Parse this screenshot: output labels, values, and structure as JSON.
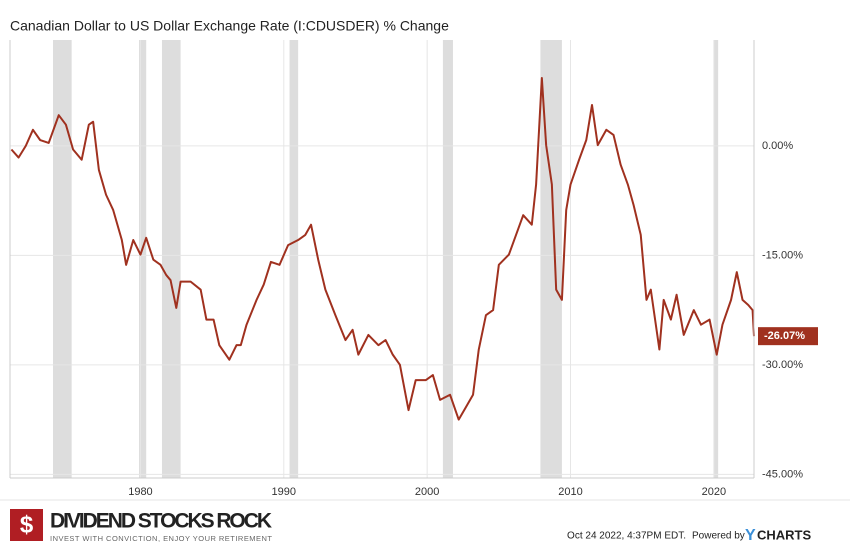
{
  "chart_data": {
    "type": "line",
    "title": "Canadian Dollar to US Dollar Exchange Rate (I:CDUSDER) % Change",
    "x": [
      1971.0,
      1971.5,
      1972.0,
      1972.5,
      1973.0,
      1973.6,
      1974.3,
      1974.8,
      1975.3,
      1975.9,
      1976.4,
      1976.7,
      1977.1,
      1977.6,
      1978.1,
      1978.7,
      1979.0,
      1979.5,
      1980.0,
      1980.4,
      1980.9,
      1981.4,
      1981.8,
      1982.1,
      1982.5,
      1982.8,
      1983.5,
      1984.2,
      1984.6,
      1985.1,
      1985.5,
      1986.2,
      1986.7,
      1987.0,
      1987.4,
      1988.1,
      1988.6,
      1989.1,
      1989.7,
      1990.3,
      1991.0,
      1991.5,
      1991.9,
      1992.4,
      1992.9,
      1993.6,
      1994.3,
      1994.8,
      1995.2,
      1995.9,
      1996.6,
      1997.1,
      1997.6,
      1998.1,
      1998.7,
      1999.2,
      1999.9,
      2000.4,
      2000.9,
      2001.6,
      2002.2,
      2002.7,
      2003.2,
      2003.6,
      2004.1,
      2004.6,
      2005.0,
      2005.7,
      2006.2,
      2006.7,
      2007.3,
      2007.6,
      2008.0,
      2008.3,
      2008.7,
      2009.0,
      2009.4,
      2009.7,
      2010.0,
      2010.6,
      2011.1,
      2011.5,
      2011.9,
      2012.5,
      2013.0,
      2013.5,
      2014.0,
      2014.4,
      2014.9,
      2015.3,
      2015.6,
      2016.2,
      2016.5,
      2017.0,
      2017.4,
      2017.9,
      2018.6,
      2019.1,
      2019.7,
      2020.2,
      2020.6,
      2021.2,
      2021.6,
      2022.0,
      2022.4,
      2022.7,
      2022.8
    ],
    "series": [
      {
        "name": "I:CDUSDER",
        "color": "#a0311f",
        "values": [
          -0.5,
          -1.6,
          0,
          2.2,
          0.8,
          0.4,
          4.2,
          2.9,
          -0.5,
          -1.9,
          2.9,
          3.3,
          -3.3,
          -6.7,
          -8.8,
          -12.9,
          -16.3,
          -12.9,
          -14.9,
          -12.6,
          -15.6,
          -16.3,
          -17.7,
          -18.4,
          -22.2,
          -18.6,
          -18.6,
          -19.7,
          -23.8,
          -23.8,
          -27.3,
          -29.3,
          -27.3,
          -27.3,
          -24.5,
          -21.1,
          -19.0,
          -15.9,
          -16.3,
          -13.6,
          -12.9,
          -12.2,
          -10.8,
          -15.6,
          -19.7,
          -23.2,
          -26.6,
          -25.2,
          -28.6,
          -25.9,
          -27.3,
          -26.6,
          -28.6,
          -30.0,
          -36.2,
          -32.1,
          -32.1,
          -31.4,
          -34.8,
          -34.1,
          -37.5,
          -35.8,
          -34.1,
          -27.9,
          -23.2,
          -22.5,
          -16.3,
          -14.9,
          -12.2,
          -9.5,
          -10.8,
          -5.3,
          9.3,
          0.1,
          -5.3,
          -19.7,
          -21.1,
          -8.8,
          -5.3,
          -1.9,
          0.8,
          5.6,
          0.1,
          2.2,
          1.5,
          -2.6,
          -5.3,
          -8.1,
          -12.2,
          -21.1,
          -19.7,
          -27.9,
          -21.1,
          -23.8,
          -20.4,
          -25.9,
          -22.5,
          -24.5,
          -23.8,
          -28.6,
          -24.5,
          -21.1,
          -17.3,
          -21.1,
          -21.8,
          -22.5,
          -26.07
        ],
        "end_label": "-26.07%"
      }
    ],
    "recessions": [
      [
        1973.9,
        1975.2
      ],
      [
        1979.9,
        1980.4
      ],
      [
        1981.5,
        1982.8
      ],
      [
        1990.4,
        1991.0
      ],
      [
        2001.1,
        2001.8
      ],
      [
        2007.9,
        2009.4
      ],
      [
        2020.0,
        2020.3
      ]
    ],
    "recession_color": "#dddddd",
    "xlim": [
      1970.9,
      2022.8
    ],
    "xticks": [
      1980,
      1990,
      2000,
      2010,
      2020
    ],
    "ylim": [
      -45.5,
      14.5
    ],
    "yticks": [
      {
        "value": 0,
        "label": "0.00%"
      },
      {
        "value": -15,
        "label": "-15.00%"
      },
      {
        "value": -30,
        "label": "-30.00%"
      },
      {
        "value": -45,
        "label": "-45.00%"
      }
    ],
    "grid": true
  },
  "footer": {
    "brand": "DIVIDEND STOCKS ROCK",
    "tagline": "INVEST WITH CONVICTION, ENJOY YOUR RETIREMENT",
    "timestamp": "Oct 24 2022, 4:37PM EDT.",
    "powered": "Powered by",
    "ycharts_y": "Y",
    "ycharts_rest": "CHARTS"
  }
}
